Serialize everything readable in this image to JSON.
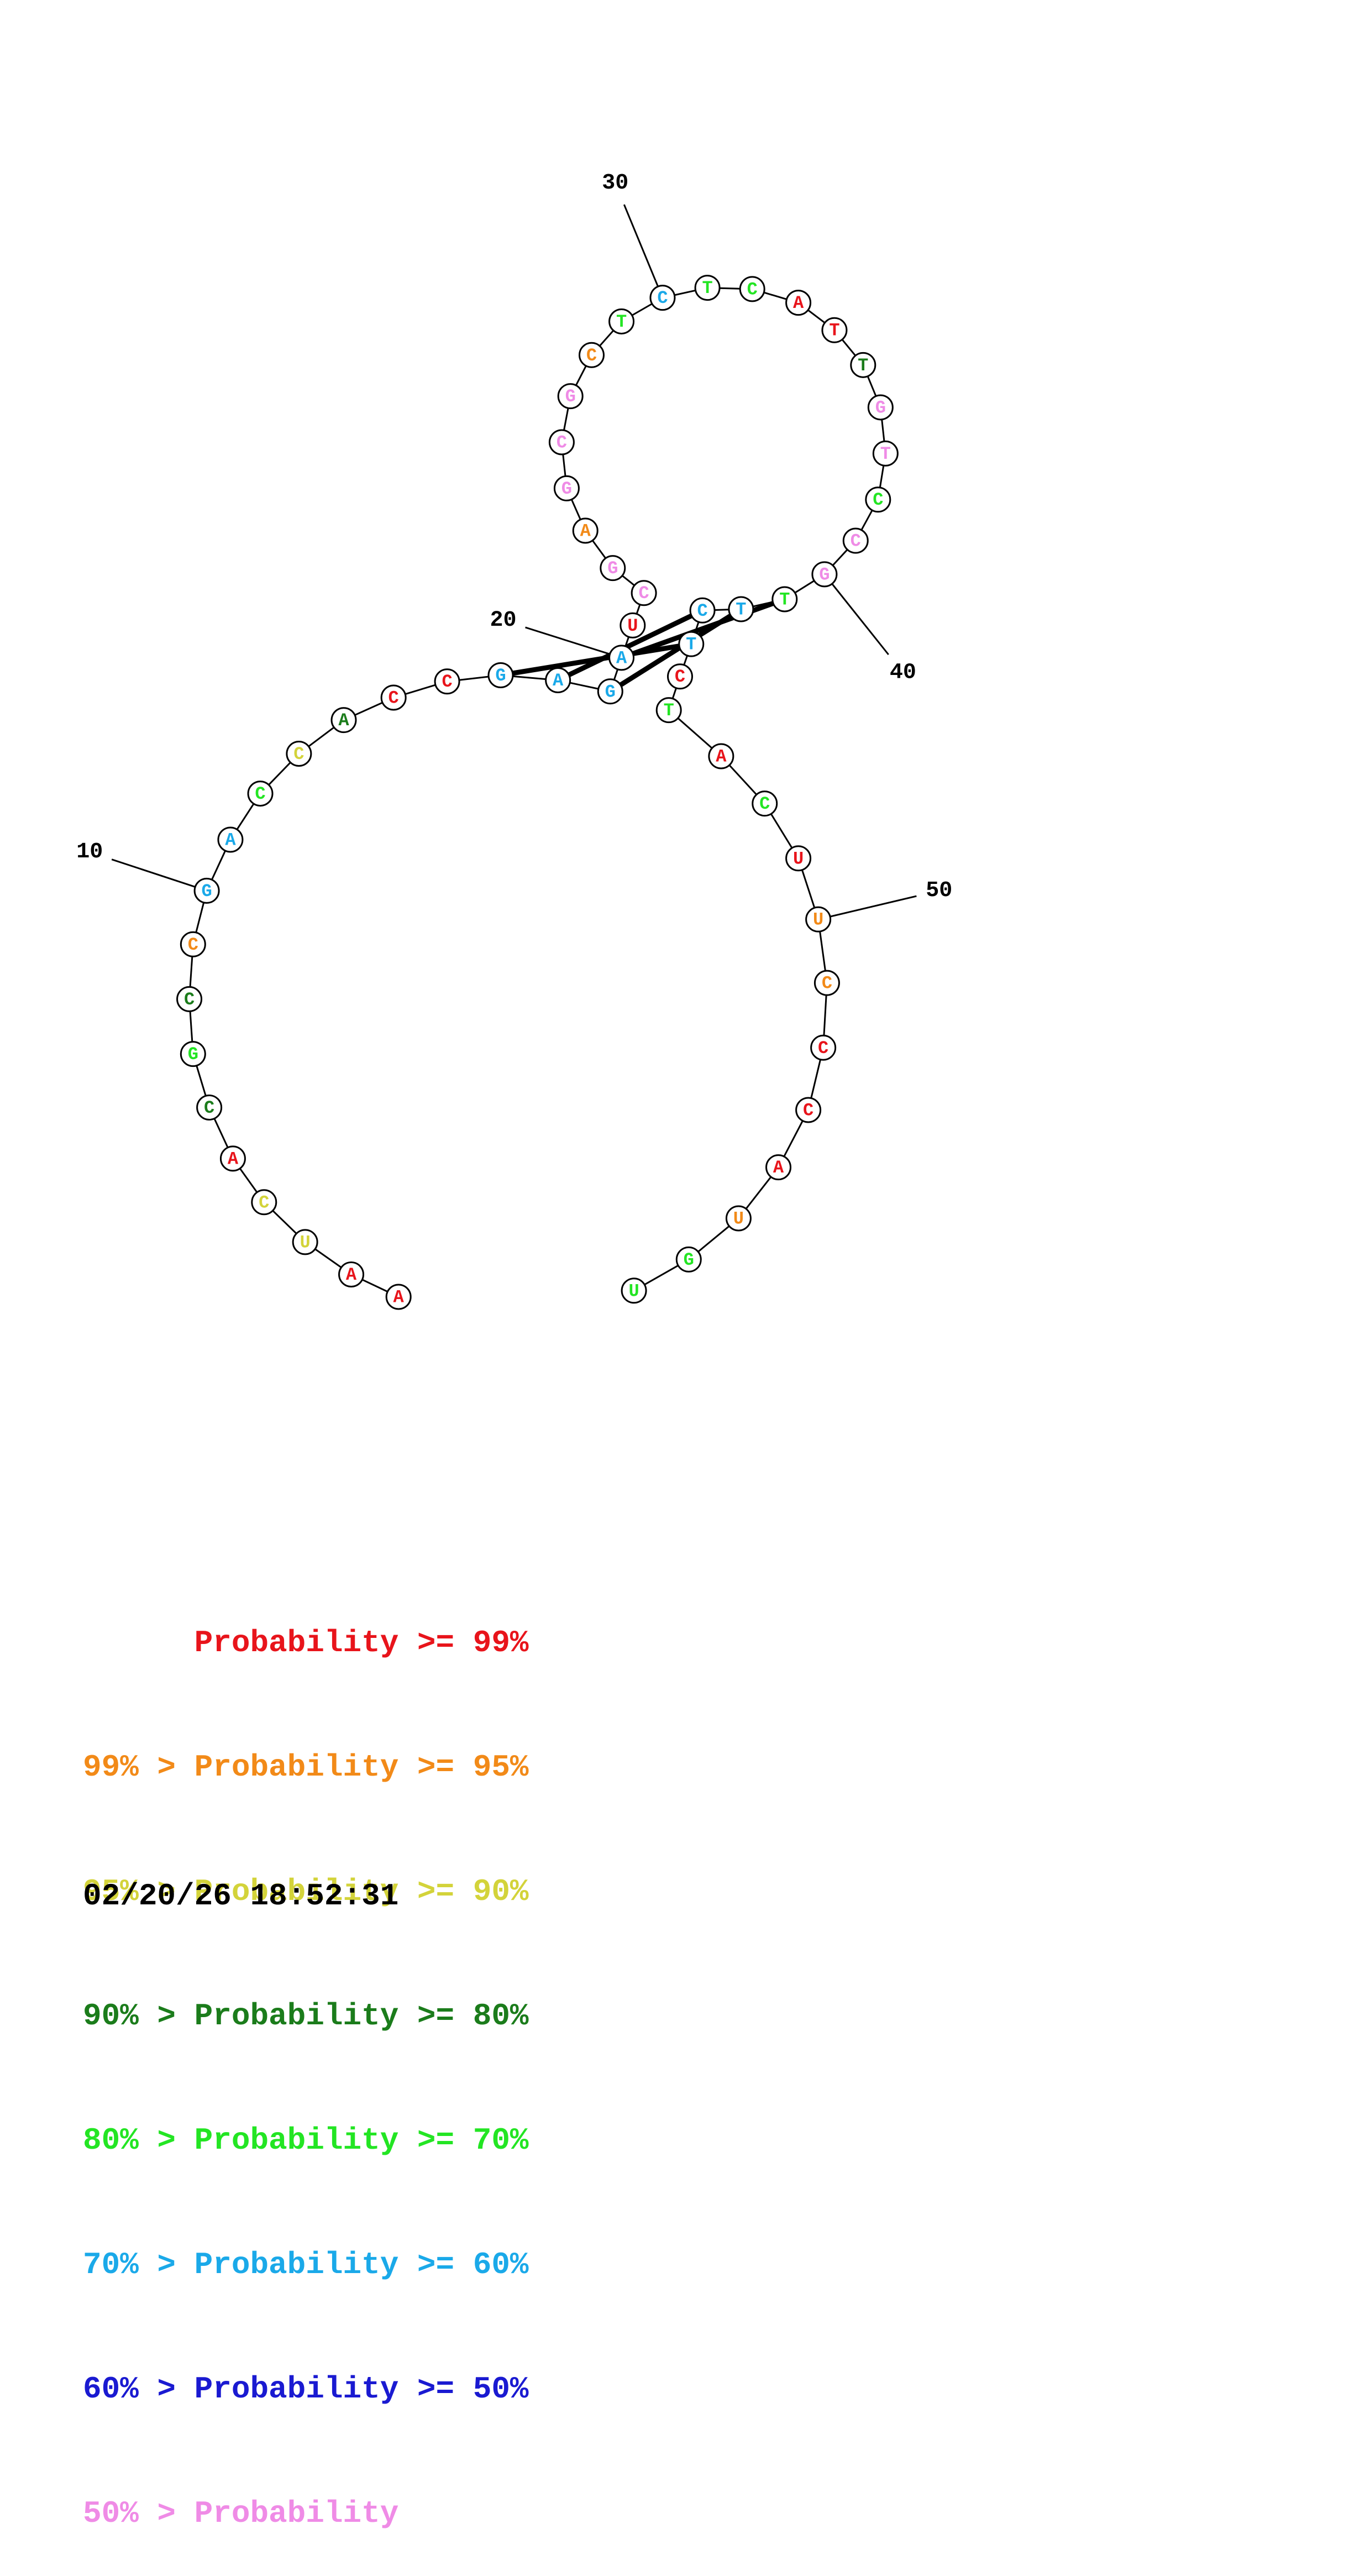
{
  "structure": {
    "sequence": [
      "A",
      "A",
      "U",
      "C",
      "A",
      "C",
      "G",
      "C",
      "C",
      "G",
      "A",
      "C",
      "C",
      "A",
      "C",
      "C",
      "G",
      "A",
      "G",
      "A",
      "U",
      "C",
      "G",
      "A",
      "G",
      "C",
      "G",
      "C",
      "T",
      "C",
      "T",
      "C",
      "A",
      "T",
      "T",
      "G",
      "T",
      "C",
      "C",
      "G",
      "T",
      "T",
      "C",
      "T",
      "C",
      "T",
      "A",
      "C",
      "U",
      "U",
      "C",
      "C",
      "C",
      "A",
      "U",
      "G",
      "U"
    ],
    "probability_class": [
      0,
      0,
      2,
      2,
      0,
      3,
      4,
      3,
      1,
      5,
      5,
      4,
      2,
      3,
      0,
      0,
      5,
      5,
      5,
      5,
      0,
      7,
      7,
      1,
      7,
      7,
      7,
      1,
      4,
      5,
      4,
      4,
      0,
      0,
      3,
      7,
      7,
      4,
      7,
      7,
      4,
      5,
      5,
      5,
      0,
      4,
      0,
      4,
      0,
      1,
      1,
      0,
      0,
      0,
      1,
      4,
      4
    ],
    "position_labels": [
      {
        "text": "10",
        "nucleotide": 10
      },
      {
        "text": "20",
        "nucleotide": 20
      },
      {
        "text": "30",
        "nucleotide": 30
      },
      {
        "text": "40",
        "nucleotide": 40
      },
      {
        "text": "50",
        "nucleotide": 50
      }
    ],
    "base_pairs": [
      [
        17,
        44
      ],
      [
        18,
        43
      ],
      [
        19,
        42
      ],
      [
        20,
        41
      ]
    ]
  },
  "class_colors": [
    "#e8141b",
    "#f28a18",
    "#d3d33a",
    "#1b7c1b",
    "#23e523",
    "#1aa9e9",
    "#1a1ad1",
    "#ef8be6"
  ],
  "legend": [
    {
      "text": "      Probability >= 99%",
      "color": "#e8141b"
    },
    {
      "text": "99% > Probability >= 95%",
      "color": "#f28a18"
    },
    {
      "text": "95% > Probability >= 90%",
      "color": "#d3d33a"
    },
    {
      "text": "90% > Probability >= 80%",
      "color": "#1b7c1b"
    },
    {
      "text": "80% > Probability >= 70%",
      "color": "#23e523"
    },
    {
      "text": "70% > Probability >= 60%",
      "color": "#1aa9e9"
    },
    {
      "text": "60% > Probability >= 50%",
      "color": "#1a1ad1"
    },
    {
      "text": "50% > Probability",
      "color": "#ef8be6"
    }
  ],
  "timestamp": "02/20/26 18:52:31"
}
